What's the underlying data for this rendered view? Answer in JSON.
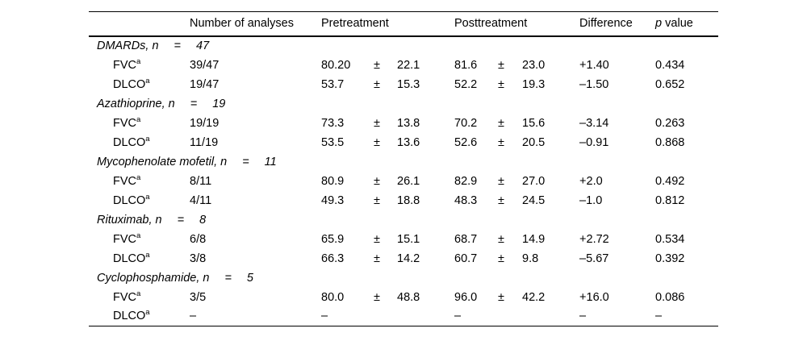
{
  "table": {
    "sup_marker": "a",
    "header": {
      "analyses": "Number of analyses",
      "pretreatment": "Pretreatment",
      "posttreatment": "Posttreatment",
      "difference": "Difference",
      "p_italic": "p",
      "p_rest": " value"
    },
    "groups": [
      {
        "name": "DMARDs, n",
        "eq": "=",
        "n": "47",
        "rows": [
          {
            "label": "FVC",
            "analyses": "39/47",
            "pre_mean": "80.20",
            "pre_pm": "±",
            "pre_sd": "22.1",
            "post_mean": "81.6",
            "post_pm": "±",
            "post_sd": "23.0",
            "diff": "+1.40",
            "p": "0.434"
          },
          {
            "label": "DLCO",
            "analyses": "19/47",
            "pre_mean": "53.7",
            "pre_pm": "±",
            "pre_sd": "15.3",
            "post_mean": "52.2",
            "post_pm": "±",
            "post_sd": "19.3",
            "diff": "–1.50",
            "p": "0.652"
          }
        ]
      },
      {
        "name": "Azathioprine, n",
        "eq": "=",
        "n": "19",
        "rows": [
          {
            "label": "FVC",
            "analyses": "19/19",
            "pre_mean": "73.3",
            "pre_pm": "±",
            "pre_sd": "13.8",
            "post_mean": "70.2",
            "post_pm": "±",
            "post_sd": "15.6",
            "diff": "–3.14",
            "p": "0.263"
          },
          {
            "label": "DLCO",
            "analyses": "11/19",
            "pre_mean": "53.5",
            "pre_pm": "±",
            "pre_sd": "13.6",
            "post_mean": "52.6",
            "post_pm": "±",
            "post_sd": "20.5",
            "diff": "–0.91",
            "p": "0.868"
          }
        ]
      },
      {
        "name": "Mycophenolate mofetil, n",
        "eq": "=",
        "n": "11",
        "rows": [
          {
            "label": "FVC",
            "analyses": "8/11",
            "pre_mean": "80.9",
            "pre_pm": "±",
            "pre_sd": "26.1",
            "post_mean": "82.9",
            "post_pm": "±",
            "post_sd": "27.0",
            "diff": "+2.0",
            "p": "0.492"
          },
          {
            "label": "DLCO",
            "analyses": "4/11",
            "pre_mean": "49.3",
            "pre_pm": "±",
            "pre_sd": "18.8",
            "post_mean": "48.3",
            "post_pm": "±",
            "post_sd": "24.5",
            "diff": "–1.0",
            "p": "0.812"
          }
        ]
      },
      {
        "name": "Rituximab, n",
        "eq": "=",
        "n": "8",
        "rows": [
          {
            "label": "FVC",
            "analyses": "6/8",
            "pre_mean": "65.9",
            "pre_pm": "±",
            "pre_sd": "15.1",
            "post_mean": "68.7",
            "post_pm": "±",
            "post_sd": "14.9",
            "diff": "+2.72",
            "p": "0.534"
          },
          {
            "label": "DLCO",
            "analyses": "3/8",
            "pre_mean": "66.3",
            "pre_pm": "±",
            "pre_sd": "14.2",
            "post_mean": "60.7",
            "post_pm": "±",
            "post_sd": "9.8",
            "diff": "–5.67",
            "p": "0.392"
          }
        ]
      },
      {
        "name": "Cyclophosphamide, n",
        "eq": "=",
        "n": "5",
        "rows": [
          {
            "label": "FVC",
            "analyses": "3/5",
            "pre_mean": "80.0",
            "pre_pm": "±",
            "pre_sd": "48.8",
            "post_mean": "96.0",
            "post_pm": "±",
            "post_sd": "42.2",
            "diff": "+16.0",
            "p": "0.086"
          },
          {
            "label": "DLCO",
            "analyses": "–",
            "pre_mean": "–",
            "pre_pm": "",
            "pre_sd": "",
            "post_mean": "–",
            "post_pm": "",
            "post_sd": "",
            "diff": "–",
            "p": "–"
          }
        ]
      }
    ]
  }
}
